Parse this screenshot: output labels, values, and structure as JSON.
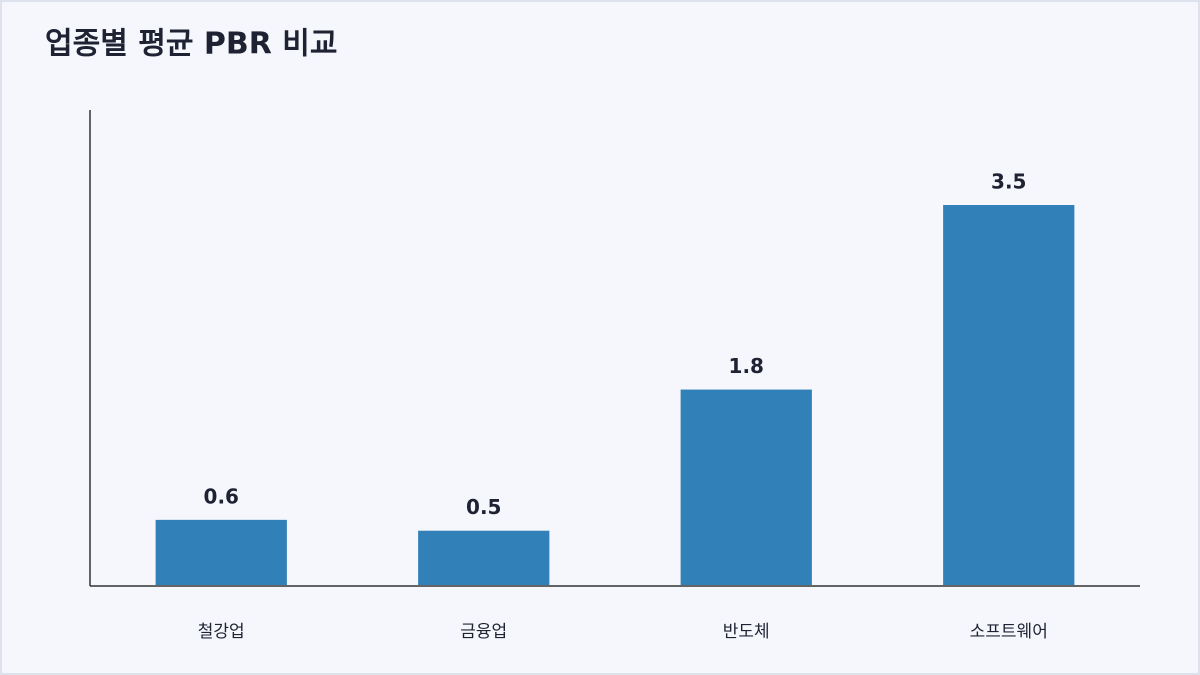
{
  "chart_data": {
    "type": "bar",
    "title": "업종별 평균 PBR 비교",
    "categories": [
      "철강업",
      "금융업",
      "반도체",
      "소프트웨어"
    ],
    "values": [
      0.6,
      0.5,
      1.8,
      3.5
    ],
    "color": "#3180b8",
    "ylim": [
      0,
      4.375
    ]
  }
}
